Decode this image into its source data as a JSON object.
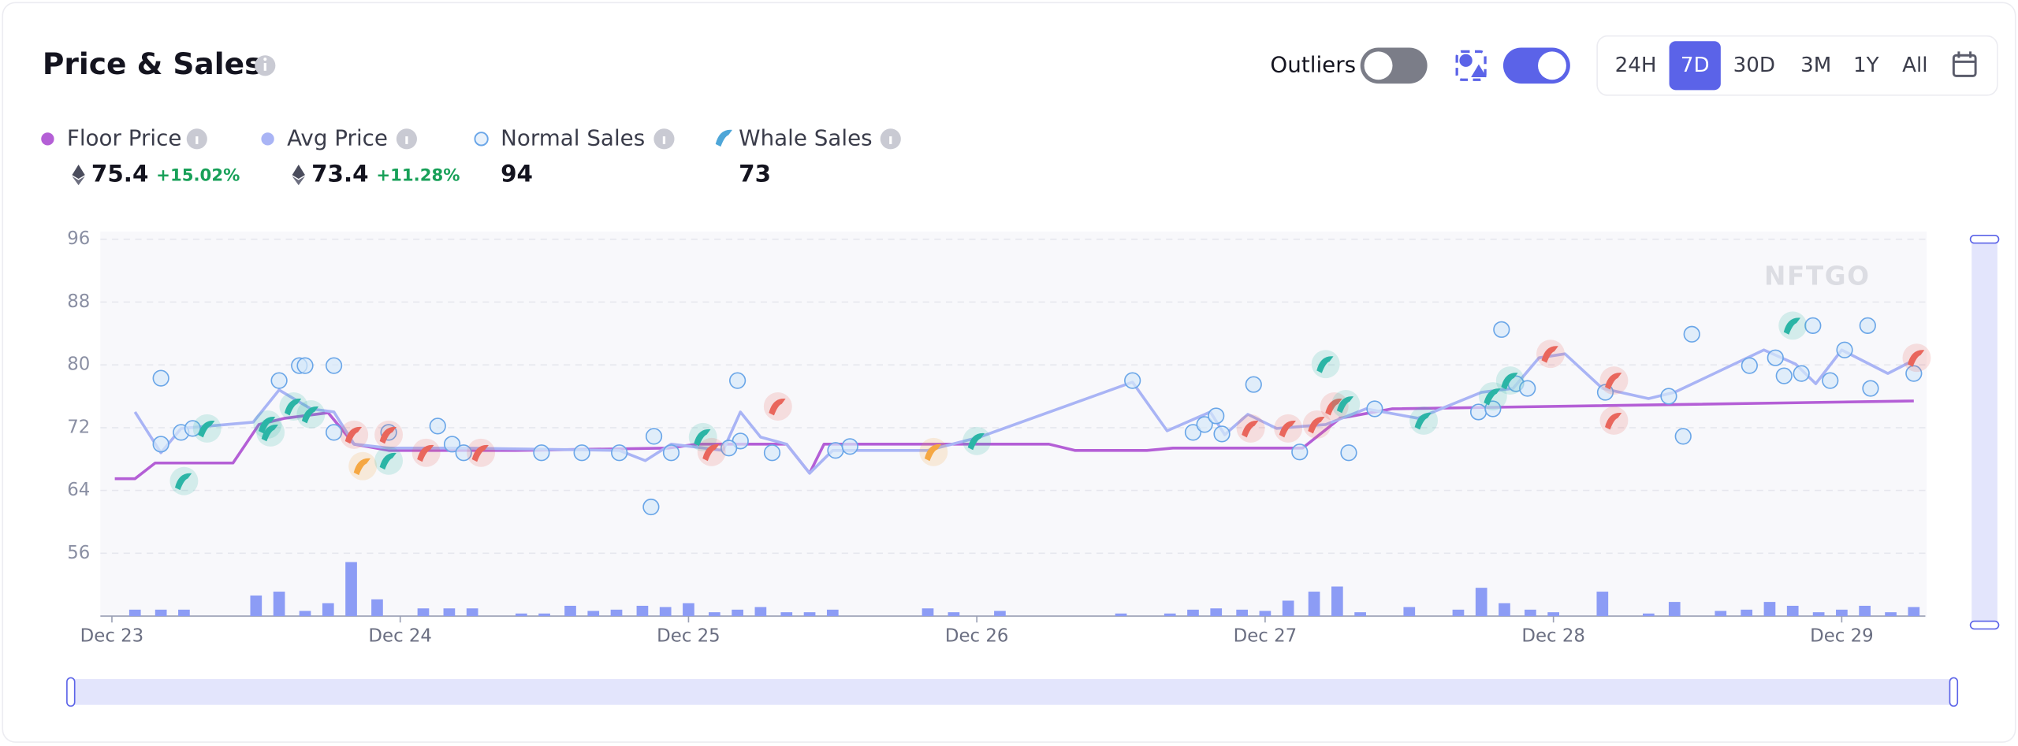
{
  "header": {
    "title": "Price & Sales",
    "outliers_label": "Outliers",
    "ranges": [
      "24H",
      "7D",
      "30D",
      "3M",
      "1Y",
      "All"
    ],
    "active_range": "7D",
    "stats": [
      {
        "name": "Floor Price",
        "value": "75.4",
        "change": "+15.02%"
      },
      {
        "name": "Avg Price",
        "value": "73.4",
        "change": "+11.28%"
      },
      {
        "name": "Normal Sales",
        "value": "94"
      },
      {
        "name": "Whale Sales",
        "value": "73"
      }
    ]
  },
  "chart_data": {
    "type": "line",
    "watermark": "NFTGO",
    "xlim": [
      -0.04,
      6.29
    ],
    "ylim": [
      48,
      96
    ],
    "yticks": [
      56,
      64,
      72,
      80,
      88,
      96
    ],
    "grid": true,
    "xticks": [
      {
        "value": 0,
        "label": "Dec 23"
      },
      {
        "value": 1,
        "label": "Dec 24"
      },
      {
        "value": 2,
        "label": "Dec 25"
      },
      {
        "value": 3,
        "label": "Dec 26"
      },
      {
        "value": 4,
        "label": "Dec 27"
      },
      {
        "value": 5,
        "label": "Dec 28"
      },
      {
        "value": 6,
        "label": "Dec 29"
      }
    ],
    "series": [
      {
        "name": "Floor Price",
        "type": "line",
        "color": "#b45fd6",
        "x": [
          0.01,
          0.08,
          0.15,
          0.42,
          0.51,
          0.6,
          0.75,
          0.84,
          0.96,
          1.4,
          1.93,
          2.03,
          2.34,
          2.42,
          2.47,
          2.83,
          3.25,
          3.34,
          3.59,
          3.68,
          4.13,
          4.26,
          4.44,
          6.25
        ],
        "values": [
          65.5,
          65.5,
          67.5,
          67.5,
          72.4,
          73.2,
          73.9,
          69.9,
          69.1,
          69.1,
          69.4,
          69.9,
          69.9,
          66.2,
          69.9,
          69.9,
          69.9,
          69.1,
          69.1,
          69.4,
          69.4,
          73.2,
          74.4,
          75.4
        ]
      },
      {
        "name": "Avg Price",
        "type": "line",
        "color": "#a9b4f5",
        "x": [
          0.08,
          0.17,
          0.24,
          0.49,
          0.58,
          0.69,
          0.77,
          0.84,
          0.96,
          1.22,
          1.76,
          1.85,
          1.94,
          2.12,
          2.18,
          2.25,
          2.34,
          2.42,
          2.5,
          2.83,
          3.01,
          3.54,
          3.66,
          3.81,
          3.86,
          3.94,
          4.04,
          4.21,
          4.35,
          4.53,
          4.75,
          4.86,
          4.95,
          5.04,
          5.17,
          5.33,
          5.42,
          5.73,
          5.84,
          5.91,
          6.0,
          6.16,
          6.25
        ],
        "values": [
          74.0,
          68.8,
          71.9,
          72.7,
          76.8,
          74.4,
          74.0,
          69.9,
          69.4,
          69.4,
          69.1,
          67.8,
          69.9,
          69.1,
          74.0,
          70.8,
          69.9,
          66.2,
          69.1,
          69.1,
          70.8,
          77.8,
          71.6,
          74.0,
          71.1,
          73.7,
          71.9,
          72.4,
          74.4,
          73.2,
          76.5,
          77.0,
          80.9,
          81.4,
          77.0,
          75.7,
          76.5,
          81.9,
          80.1,
          77.6,
          81.9,
          78.9,
          80.6
        ]
      },
      {
        "name": "Normal Sales",
        "type": "scatter",
        "color": "#6aa6e8",
        "x": [
          0.17,
          0.17,
          0.24,
          0.28,
          0.58,
          0.65,
          0.67,
          0.77,
          0.77,
          0.96,
          1.13,
          1.18,
          1.22,
          1.49,
          1.63,
          1.76,
          1.87,
          1.88,
          1.94,
          2.17,
          2.18,
          2.14,
          2.29,
          2.51,
          2.56,
          3.54,
          3.75,
          3.79,
          3.83,
          3.85,
          3.96,
          4.12,
          4.29,
          4.38,
          4.74,
          4.79,
          4.82,
          4.87,
          4.91,
          5.18,
          5.4,
          5.45,
          5.48,
          5.68,
          5.77,
          5.8,
          5.86,
          5.9,
          5.96,
          6.01,
          6.09,
          6.1,
          6.25
        ],
        "values": [
          78.3,
          69.9,
          71.4,
          71.9,
          78.0,
          79.9,
          79.9,
          79.9,
          71.4,
          71.4,
          72.2,
          69.9,
          68.8,
          68.8,
          68.8,
          68.8,
          61.9,
          70.9,
          68.8,
          78.0,
          70.3,
          69.4,
          68.8,
          69.1,
          69.6,
          78.0,
          71.4,
          72.4,
          73.5,
          71.2,
          77.5,
          68.9,
          68.8,
          74.4,
          74.0,
          74.4,
          84.5,
          77.6,
          77.0,
          76.5,
          76.0,
          70.9,
          83.9,
          79.9,
          80.9,
          78.6,
          78.9,
          85.0,
          78.0,
          81.9,
          85.0,
          77.0,
          78.9
        ]
      },
      {
        "name": "Whale Sales",
        "type": "whale",
        "color": "#2bb5a6",
        "x": [
          0.25,
          0.33,
          0.54,
          0.55,
          0.63,
          0.69,
          0.84,
          0.87,
          0.96,
          0.96,
          1.09,
          1.28,
          2.05,
          2.08,
          2.31,
          2.85,
          3.0,
          3.95,
          4.08,
          4.18,
          4.21,
          4.24,
          4.28,
          4.55,
          4.79,
          4.85,
          4.99,
          5.21,
          5.21,
          5.83,
          6.26
        ],
        "values": [
          65.2,
          71.9,
          72.4,
          71.4,
          74.7,
          73.7,
          71.1,
          67.1,
          71.1,
          67.8,
          68.8,
          68.8,
          70.8,
          68.9,
          74.7,
          68.9,
          70.3,
          71.9,
          71.9,
          72.4,
          80.1,
          74.7,
          75.0,
          72.9,
          76.0,
          78.0,
          81.4,
          78.0,
          72.9,
          85.0,
          80.9
        ],
        "point_colors": [
          "#2bb5a6",
          "#2bb5a6",
          "#2bb5a6",
          "#2bb5a6",
          "#2bb5a6",
          "#2bb5a6",
          "#e9665c",
          "#f5a742",
          "#e9665c",
          "#2bb5a6",
          "#e9665c",
          "#e9665c",
          "#2bb5a6",
          "#e9665c",
          "#e9665c",
          "#f5a742",
          "#2bb5a6",
          "#e9665c",
          "#e9665c",
          "#e9665c",
          "#2bb5a6",
          "#e9665c",
          "#2bb5a6",
          "#2bb5a6",
          "#2bb5a6",
          "#2bb5a6",
          "#e9665c",
          "#e9665c",
          "#e9665c",
          "#2bb5a6",
          "#e9665c"
        ]
      },
      {
        "type": "bar",
        "color": "#8c9cf5",
        "x": [
          0.08,
          0.17,
          0.25,
          0.5,
          0.58,
          0.67,
          0.75,
          0.83,
          0.92,
          1.08,
          1.17,
          1.25,
          1.42,
          1.5,
          1.59,
          1.67,
          1.75,
          1.84,
          1.92,
          2.0,
          2.09,
          2.17,
          2.25,
          2.34,
          2.42,
          2.5,
          2.83,
          2.92,
          3.08,
          3.5,
          3.67,
          3.75,
          3.83,
          3.92,
          4.0,
          4.08,
          4.17,
          4.25,
          4.33,
          4.5,
          4.67,
          4.75,
          4.83,
          4.92,
          5.0,
          5.17,
          5.33,
          5.42,
          5.58,
          5.67,
          5.75,
          5.83,
          5.92,
          6.0,
          6.08,
          6.17,
          6.25
        ],
        "values": [
          5,
          5,
          5,
          16,
          19,
          4,
          10,
          42,
          13,
          6,
          6,
          6,
          2,
          2,
          8,
          4,
          5,
          8,
          7,
          10,
          3,
          5,
          7,
          3,
          3,
          5,
          6,
          3,
          4,
          2,
          2,
          5,
          6,
          5,
          4,
          12,
          19,
          23,
          3,
          7,
          5,
          22,
          10,
          5,
          3,
          19,
          2,
          11,
          4,
          5,
          11,
          8,
          3,
          5,
          8,
          3,
          7
        ]
      }
    ]
  }
}
